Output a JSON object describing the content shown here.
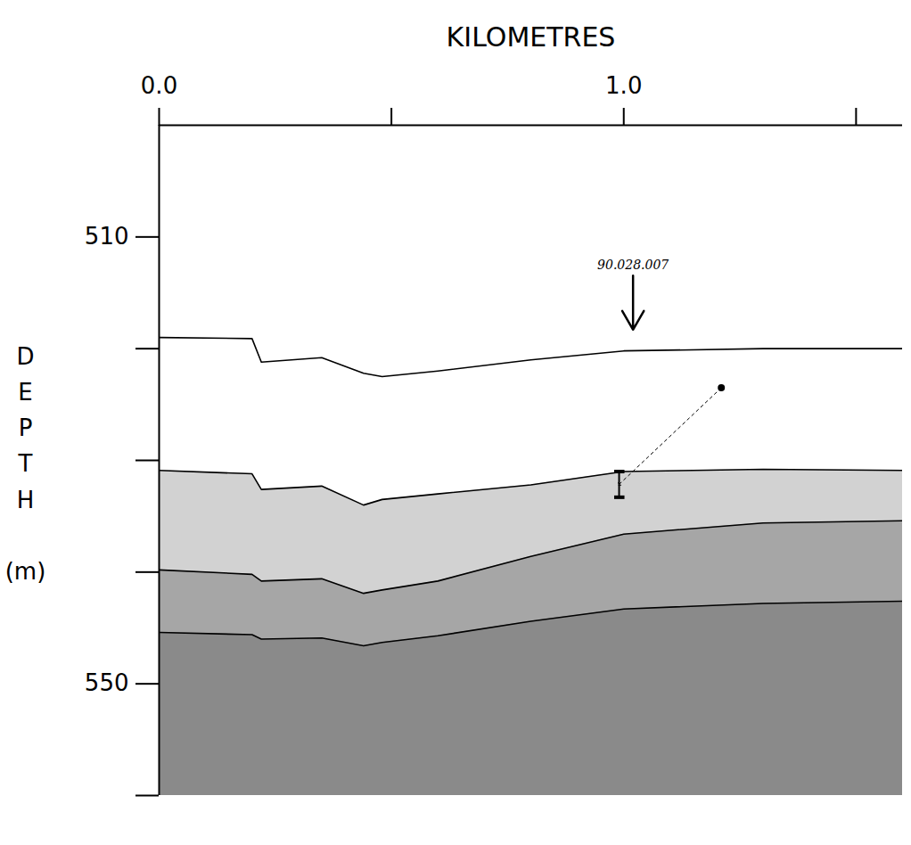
{
  "chart_data": {
    "type": "line",
    "xlabel": "KILOMETRES",
    "ylabel": "DEPTH (m)",
    "xlim": [
      0,
      1.6
    ],
    "xticks": [
      {
        "value": 0,
        "label": "0.0"
      },
      {
        "value": 1,
        "label": "1.0"
      }
    ],
    "minor_xticks": [
      0.5,
      1.5
    ],
    "ylim": [
      500,
      560
    ],
    "yticks": [
      510,
      550
    ],
    "minor_yticks": [
      520,
      530,
      540,
      560
    ],
    "x": [
      0,
      0.2,
      0.22,
      0.35,
      0.44,
      0.48,
      0.6,
      0.8,
      1.0,
      1.3,
      1.6
    ],
    "series": [
      {
        "color": "#000000",
        "values": [
          519.0,
          519.1,
          521.2,
          520.8,
          522.2,
          522.5,
          522.0,
          521.0,
          520.2,
          520.0,
          520.0
        ]
      },
      {
        "color": "#000000",
        "values": [
          530.9,
          531.2,
          532.6,
          532.3,
          534.0,
          533.5,
          533.0,
          532.2,
          531.0,
          530.8,
          530.9
        ]
      },
      {
        "color": "#000000",
        "values": [
          539.8,
          540.2,
          540.8,
          540.6,
          541.9,
          541.6,
          540.8,
          538.6,
          536.6,
          535.6,
          535.4
        ]
      },
      {
        "color": "#000000",
        "values": [
          545.4,
          545.6,
          546.0,
          545.9,
          546.6,
          546.3,
          545.7,
          544.4,
          543.3,
          542.8,
          542.6
        ]
      }
    ],
    "annotations": [
      {
        "text": "90.028.007",
        "x": 1.02,
        "y": 512.5,
        "arrow_to": 518.3
      }
    ],
    "sample": {
      "x": 0.99,
      "top": 531.0,
      "bottom": 533.3,
      "marker_x": 1.21,
      "marker_y": 523.5
    }
  }
}
